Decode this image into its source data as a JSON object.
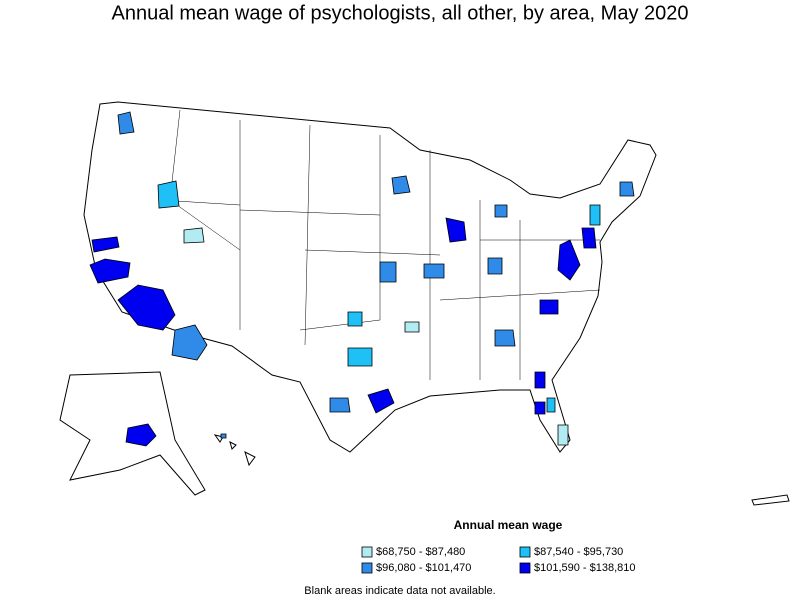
{
  "title": "Annual mean wage of psychologists, all other, by area, May 2020",
  "legend": {
    "title": "Annual mean wage",
    "items": [
      {
        "label": "$68,750 - $87,480",
        "color": "#b2ecf2"
      },
      {
        "label": "$87,540 - $95,730",
        "color": "#1ec0f5"
      },
      {
        "label": "$96,080 - $101,470",
        "color": "#2f8ae8"
      },
      {
        "label": "$101,590 - $138,810",
        "color": "#0000f0"
      }
    ]
  },
  "note": "Blank areas indicate data not available."
}
